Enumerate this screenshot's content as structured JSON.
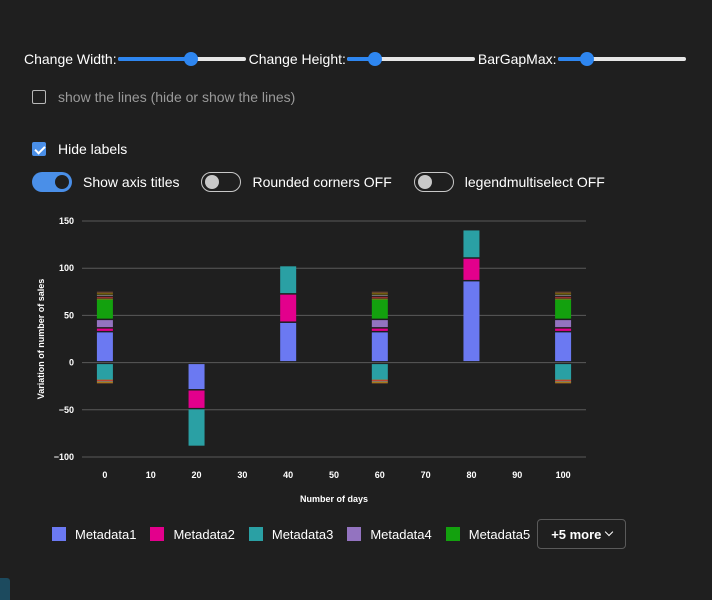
{
  "controls": {
    "sliders": [
      {
        "label": "Change Width:",
        "level": 0.57
      },
      {
        "label": "Change Height:",
        "level": 0.22
      },
      {
        "label": "BarGapMax:",
        "level": 0.23
      }
    ],
    "show_lines": {
      "label": "show the lines (hide or show the lines)",
      "checked": false
    },
    "hide_labels": {
      "label": "Hide labels",
      "checked": true
    },
    "toggles": [
      {
        "label": "Show axis titles",
        "on": true
      },
      {
        "label": "Rounded corners OFF",
        "on": false
      },
      {
        "label": "legendmultiselect OFF",
        "on": false
      }
    ]
  },
  "legend": {
    "items": [
      {
        "label": "Metadata1",
        "color": "#6b79f2"
      },
      {
        "label": "Metadata2",
        "color": "#e3008c"
      },
      {
        "label": "Metadata3",
        "color": "#2aa0a4"
      },
      {
        "label": "Metadata4",
        "color": "#9373c0"
      },
      {
        "label": "Metadata5",
        "color": "#13a10e"
      }
    ],
    "more_label": "+5 more"
  },
  "chart_data": {
    "type": "bar",
    "stacked": true,
    "xlabel": "Number of days",
    "ylabel": "Variation of number of sales",
    "xlim": [
      -5,
      105
    ],
    "ylim": [
      -100,
      150
    ],
    "x_ticks": [
      0,
      10,
      20,
      30,
      40,
      50,
      60,
      70,
      80,
      90,
      100
    ],
    "y_ticks": [
      -100,
      -50,
      0,
      50,
      100,
      150
    ],
    "grid": true,
    "colors": {
      "Metadata1": "#6b79f2",
      "Metadata2": "#e3008c",
      "Metadata3": "#2aa0a4",
      "Metadata4": "#9373c0",
      "Metadata5": "#13a10e",
      "extra": [
        "#c4762b",
        "#d13438",
        "#8a8a8a",
        "#c19c00",
        "#9b5f3b"
      ]
    },
    "bars": [
      {
        "x": 0,
        "positive": [
          [
            "Metadata1",
            32
          ],
          [
            "Metadata2",
            4
          ],
          [
            "Metadata4",
            9
          ],
          [
            "Metadata5",
            22
          ],
          [
            "extra",
            9
          ]
        ],
        "negative": [
          [
            "Metadata3",
            -18
          ],
          [
            "extra",
            -4
          ]
        ]
      },
      {
        "x": 20,
        "positive": [],
        "negative": [
          [
            "Metadata1",
            -28
          ],
          [
            "Metadata2",
            -20
          ],
          [
            "Metadata3",
            -40
          ]
        ]
      },
      {
        "x": 40,
        "positive": [
          [
            "Metadata1",
            42
          ],
          [
            "Metadata2",
            30
          ],
          [
            "Metadata3",
            30
          ]
        ],
        "negative": []
      },
      {
        "x": 60,
        "positive": [
          [
            "Metadata1",
            32
          ],
          [
            "Metadata2",
            4
          ],
          [
            "Metadata4",
            9
          ],
          [
            "Metadata5",
            22
          ],
          [
            "extra",
            9
          ]
        ],
        "negative": [
          [
            "Metadata3",
            -18
          ],
          [
            "extra",
            -4
          ]
        ]
      },
      {
        "x": 80,
        "positive": [
          [
            "Metadata1",
            86
          ],
          [
            "Metadata2",
            24
          ],
          [
            "Metadata3",
            30
          ]
        ],
        "negative": []
      },
      {
        "x": 100,
        "positive": [
          [
            "Metadata1",
            32
          ],
          [
            "Metadata2",
            4
          ],
          [
            "Metadata4",
            9
          ],
          [
            "Metadata5",
            22
          ],
          [
            "extra",
            9
          ]
        ],
        "negative": [
          [
            "Metadata3",
            -18
          ],
          [
            "extra",
            -4
          ]
        ]
      }
    ]
  }
}
